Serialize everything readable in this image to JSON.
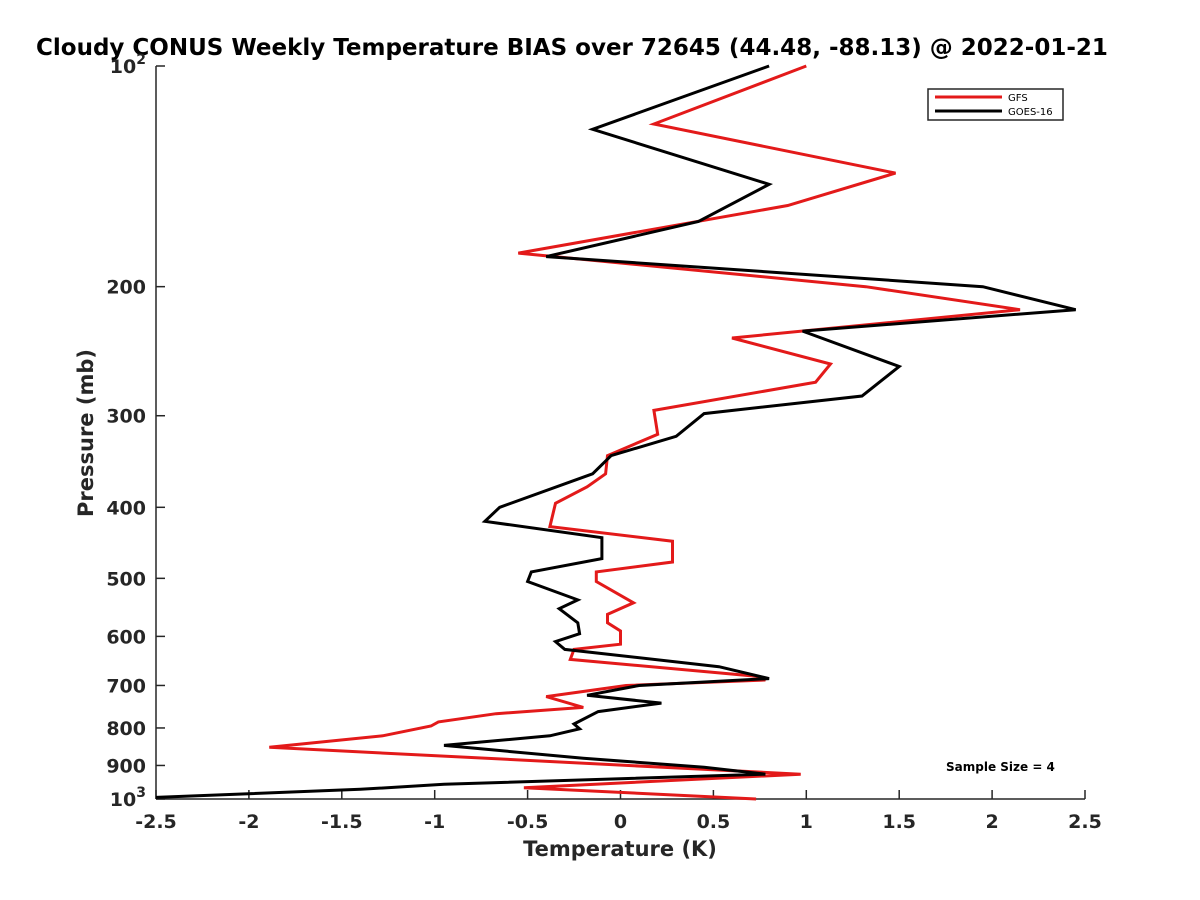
{
  "chart_data": {
    "type": "line",
    "title": "Cloudy CONUS Weekly Temperature BIAS over 72645 (44.48, -88.13) @ 2022-01-21",
    "xlabel": "Temperature (K)",
    "ylabel": "Pressure (mb)",
    "xlim": [
      -2.5,
      2.5
    ],
    "ylim": [
      100,
      1000
    ],
    "y_scale": "log",
    "y_reversed": true,
    "x_ticks": [
      -2.5,
      -2,
      -1.5,
      -1,
      -0.5,
      0,
      0.5,
      1,
      1.5,
      2,
      2.5
    ],
    "x_tick_labels": [
      "-2.5",
      "-2",
      "-1.5",
      "-1",
      "-0.5",
      "0",
      "0.5",
      "1",
      "1.5",
      "2",
      "2.5"
    ],
    "y_ticks": [
      100,
      200,
      300,
      400,
      500,
      600,
      700,
      800,
      900,
      1000
    ],
    "y_tick_labels": [
      {
        "base": "10",
        "exp": "2"
      },
      {
        "base": "200",
        "exp": ""
      },
      {
        "base": "300",
        "exp": ""
      },
      {
        "base": "400",
        "exp": ""
      },
      {
        "base": "500",
        "exp": ""
      },
      {
        "base": "600",
        "exp": ""
      },
      {
        "base": "700",
        "exp": ""
      },
      {
        "base": "800",
        "exp": ""
      },
      {
        "base": "900",
        "exp": ""
      },
      {
        "base": "10",
        "exp": "3"
      }
    ],
    "grid": false,
    "legend_position": "top-right",
    "annotation": "Sample Size = 4",
    "series": [
      {
        "name": "GFS",
        "color": "#e31a1a",
        "points": [
          [
            1.0,
            100
          ],
          [
            0.18,
            120
          ],
          [
            1.48,
            140
          ],
          [
            0.9,
            155
          ],
          [
            -0.55,
            180
          ],
          [
            1.32,
            200
          ],
          [
            2.15,
            215
          ],
          [
            0.6,
            235
          ],
          [
            1.13,
            255
          ],
          [
            1.05,
            270
          ],
          [
            0.18,
            295
          ],
          [
            0.2,
            318
          ],
          [
            -0.07,
            340
          ],
          [
            -0.08,
            360
          ],
          [
            -0.18,
            375
          ],
          [
            -0.35,
            395
          ],
          [
            -0.38,
            425
          ],
          [
            0.28,
            445
          ],
          [
            0.28,
            475
          ],
          [
            -0.13,
            490
          ],
          [
            -0.13,
            505
          ],
          [
            0.07,
            540
          ],
          [
            -0.07,
            560
          ],
          [
            -0.07,
            575
          ],
          [
            0.0,
            590
          ],
          [
            0.0,
            615
          ],
          [
            -0.25,
            625
          ],
          [
            -0.27,
            645
          ],
          [
            0.73,
            680
          ],
          [
            0.78,
            688
          ],
          [
            0.03,
            700
          ],
          [
            -0.4,
            725
          ],
          [
            -0.2,
            750
          ],
          [
            -0.67,
            765
          ],
          [
            -0.98,
            785
          ],
          [
            -1.02,
            795
          ],
          [
            -1.28,
            820
          ],
          [
            -1.89,
            850
          ],
          [
            0.97,
            925
          ],
          [
            -0.52,
            965
          ],
          [
            0.73,
            1000
          ]
        ]
      },
      {
        "name": "GOES-16",
        "color": "#000000",
        "points": [
          [
            0.8,
            100
          ],
          [
            -0.15,
            122
          ],
          [
            0.8,
            145
          ],
          [
            0.42,
            163
          ],
          [
            -0.4,
            182
          ],
          [
            1.95,
            200
          ],
          [
            2.45,
            215
          ],
          [
            0.98,
            230
          ],
          [
            1.5,
            257
          ],
          [
            1.3,
            282
          ],
          [
            0.45,
            298
          ],
          [
            0.3,
            320
          ],
          [
            -0.05,
            340
          ],
          [
            -0.15,
            360
          ],
          [
            -0.65,
            400
          ],
          [
            -0.73,
            418
          ],
          [
            -0.1,
            440
          ],
          [
            -0.1,
            470
          ],
          [
            -0.48,
            490
          ],
          [
            -0.5,
            505
          ],
          [
            -0.23,
            535
          ],
          [
            -0.33,
            550
          ],
          [
            -0.23,
            575
          ],
          [
            -0.22,
            595
          ],
          [
            -0.35,
            610
          ],
          [
            -0.3,
            625
          ],
          [
            0.53,
            660
          ],
          [
            0.8,
            685
          ],
          [
            0.1,
            700
          ],
          [
            -0.18,
            722
          ],
          [
            0.22,
            740
          ],
          [
            -0.12,
            760
          ],
          [
            -0.25,
            790
          ],
          [
            -0.22,
            802
          ],
          [
            -0.38,
            820
          ],
          [
            -0.95,
            845
          ],
          [
            -0.2,
            880
          ],
          [
            0.45,
            905
          ],
          [
            0.78,
            925
          ],
          [
            -0.95,
            955
          ],
          [
            -1.4,
            970
          ],
          [
            -2.5,
            995
          ]
        ]
      }
    ]
  }
}
